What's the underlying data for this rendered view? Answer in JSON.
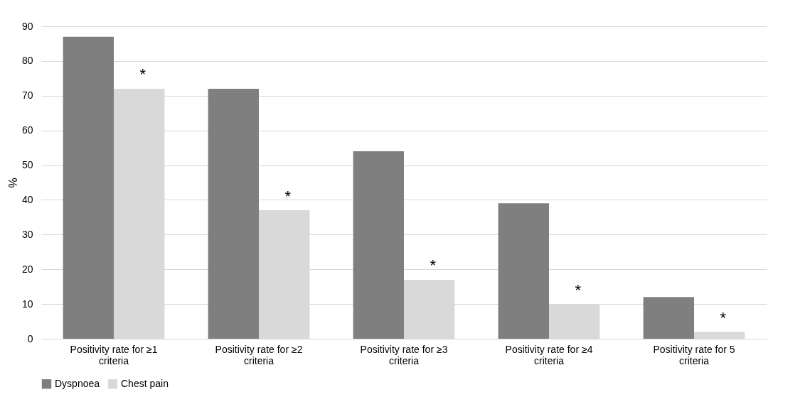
{
  "chart_data": {
    "type": "bar",
    "ylabel": "%",
    "categories": [
      "Positivity rate for ≥1 criteria",
      "Positivity rate for ≥2 criteria",
      "Positivity rate for ≥3 criteria",
      "Positivity rate for ≥4 criteria",
      "Positivity rate for 5 criteria"
    ],
    "series": [
      {
        "name": "Dyspnoea",
        "color": "#7f7f7f",
        "values": [
          87,
          72,
          54,
          39,
          12
        ]
      },
      {
        "name": "Chest pain",
        "color": "#d9d9d9",
        "values": [
          72,
          37,
          17,
          10,
          2
        ]
      }
    ],
    "ylim": [
      0,
      90
    ],
    "yticks": [
      0,
      10,
      20,
      30,
      40,
      50,
      60,
      70,
      80,
      90
    ],
    "grid": "y",
    "legend": "bottom",
    "annotations": [
      {
        "text": "*",
        "x": "Positivity rate for ≥1 criteria",
        "y": 76
      },
      {
        "text": "*",
        "x": "Positivity rate for ≥2 criteria",
        "y": 41
      },
      {
        "text": "*",
        "x": "Positivity rate for ≥3 criteria",
        "y": 21
      },
      {
        "text": "*",
        "x": "Positivity rate for ≥4 criteria",
        "y": 14
      },
      {
        "text": "*",
        "x": "Positivity rate for 5 criteria",
        "y": 6
      }
    ]
  }
}
